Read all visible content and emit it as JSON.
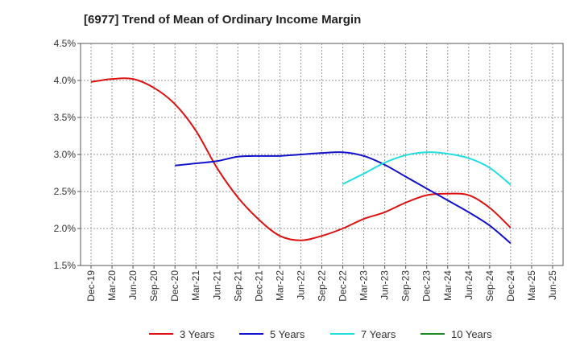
{
  "chart_data": {
    "type": "line",
    "title": "[6977]  Trend of Mean of Ordinary Income Margin",
    "xlabel": "",
    "ylabel": "",
    "ylim": [
      1.5,
      4.5
    ],
    "y_ticks": [
      "1.5%",
      "2.0%",
      "2.5%",
      "3.0%",
      "3.5%",
      "4.0%",
      "4.5%"
    ],
    "categories": [
      "Dec-19",
      "Mar-20",
      "Jun-20",
      "Sep-20",
      "Dec-20",
      "Mar-21",
      "Jun-21",
      "Sep-21",
      "Dec-21",
      "Mar-22",
      "Jun-22",
      "Sep-22",
      "Dec-22",
      "Mar-23",
      "Jun-23",
      "Sep-23",
      "Dec-23",
      "Mar-24",
      "Jun-24",
      "Sep-24",
      "Dec-24",
      "Mar-25",
      "Jun-25"
    ],
    "grid": true,
    "legend_position": "bottom",
    "series": [
      {
        "name": "3 Years",
        "color": "#dd1111",
        "values": [
          3.98,
          4.02,
          4.02,
          3.9,
          3.68,
          3.32,
          2.82,
          2.42,
          2.12,
          1.9,
          1.84,
          1.9,
          2.0,
          2.13,
          2.22,
          2.35,
          2.45,
          2.47,
          2.45,
          2.28,
          2.01,
          null,
          null
        ]
      },
      {
        "name": "5 Years",
        "color": "#1111cc",
        "values": [
          null,
          null,
          null,
          null,
          2.85,
          2.88,
          2.91,
          2.97,
          2.98,
          2.98,
          3.0,
          3.02,
          3.03,
          2.98,
          2.86,
          2.7,
          2.54,
          2.38,
          2.22,
          2.04,
          1.8,
          null,
          null
        ]
      },
      {
        "name": "7 Years",
        "color": "#22dddd",
        "values": [
          null,
          null,
          null,
          null,
          null,
          null,
          null,
          null,
          null,
          null,
          null,
          null,
          2.6,
          2.74,
          2.89,
          2.99,
          3.03,
          3.01,
          2.95,
          2.82,
          2.59,
          null,
          null
        ]
      },
      {
        "name": "10 Years",
        "color": "#228822",
        "values": [
          null,
          null,
          null,
          null,
          null,
          null,
          null,
          null,
          null,
          null,
          null,
          null,
          null,
          null,
          null,
          null,
          null,
          null,
          null,
          null,
          null,
          null,
          null
        ]
      }
    ]
  }
}
